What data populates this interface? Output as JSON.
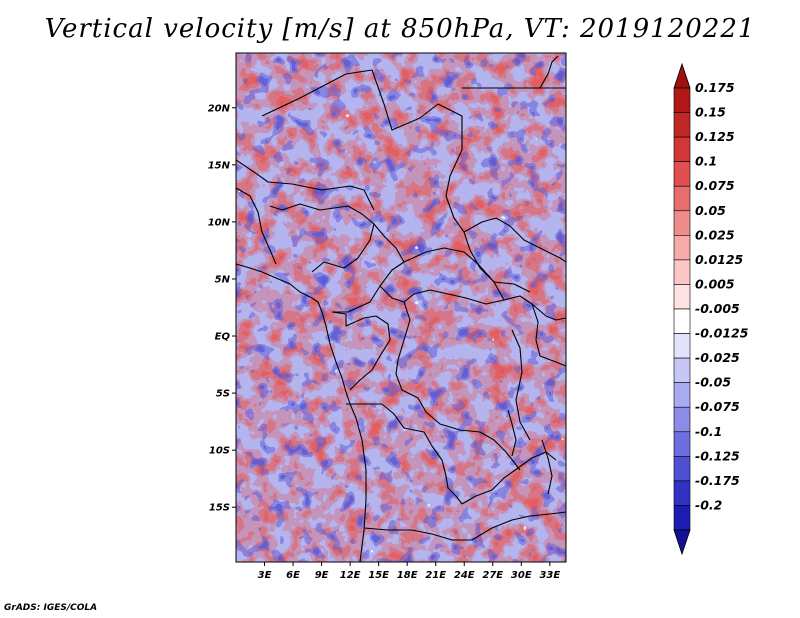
{
  "title": "Vertical velocity [m/s] at 850hPa, VT: 2019120221",
  "credit": "GrADS: IGES/COLA",
  "map": {
    "lat_labels": [
      {
        "text": "20N",
        "lat": 20
      },
      {
        "text": "15N",
        "lat": 15
      },
      {
        "text": "10N",
        "lat": 10
      },
      {
        "text": "5N",
        "lat": 5
      },
      {
        "text": "EQ",
        "lat": 0
      },
      {
        "text": "5S",
        "lat": -5
      },
      {
        "text": "10S",
        "lat": -10
      },
      {
        "text": "15S",
        "lat": -15
      }
    ],
    "lon_labels": [
      {
        "text": "3E",
        "lon": 3
      },
      {
        "text": "6E",
        "lon": 6
      },
      {
        "text": "9E",
        "lon": 9
      },
      {
        "text": "12E",
        "lon": 12
      },
      {
        "text": "15E",
        "lon": 15
      },
      {
        "text": "18E",
        "lon": 18
      },
      {
        "text": "21E",
        "lon": 21
      },
      {
        "text": "24E",
        "lon": 24
      },
      {
        "text": "27E",
        "lon": 27
      },
      {
        "text": "30E",
        "lon": 30
      },
      {
        "text": "33E",
        "lon": 33
      }
    ],
    "lon_range": [
      0,
      34.7
    ],
    "lat_range": [
      -19.8,
      24.8
    ]
  },
  "colorbar": {
    "levels": [
      {
        "label": "0.175",
        "color": "#b01818"
      },
      {
        "label": "0.15",
        "color": "#c02828"
      },
      {
        "label": "0.125",
        "color": "#d03838"
      },
      {
        "label": "0.1",
        "color": "#e05050"
      },
      {
        "label": "0.075",
        "color": "#e86e6e"
      },
      {
        "label": "0.05",
        "color": "#f08c8c"
      },
      {
        "label": "0.025",
        "color": "#f6aaaa"
      },
      {
        "label": "0.0125",
        "color": "#fac6c6"
      },
      {
        "label": "0.005",
        "color": "#fde2e2"
      },
      {
        "label": "-0.005",
        "color": "#ffffff"
      },
      {
        "label": "-0.0125",
        "color": "#e2e2fb"
      },
      {
        "label": "-0.025",
        "color": "#c6c6f5"
      },
      {
        "label": "-0.05",
        "color": "#aaaaf0"
      },
      {
        "label": "-0.075",
        "color": "#8c8ce8"
      },
      {
        "label": "-0.1",
        "color": "#6e6ee0"
      },
      {
        "label": "-0.125",
        "color": "#5050d4"
      },
      {
        "label": "-0.175",
        "color": "#3232c4"
      },
      {
        "label": "-0.2",
        "color": "#1c1cb0"
      }
    ],
    "top_color": "#a01010",
    "bottom_color": "#101098"
  }
}
